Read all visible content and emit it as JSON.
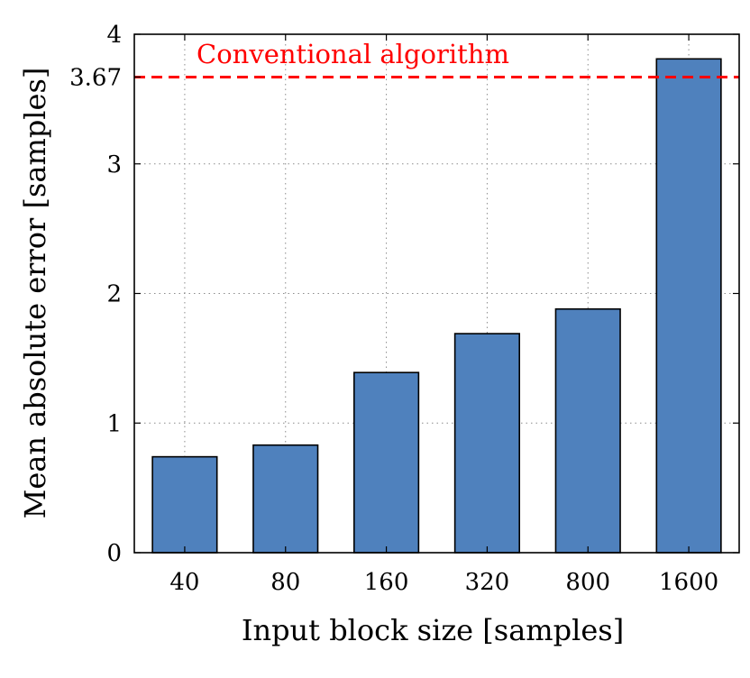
{
  "chart_data": {
    "type": "bar",
    "title": "",
    "xlabel": "Input block size [samples]",
    "ylabel": "Mean absolute error [samples]",
    "categories": [
      "40",
      "80",
      "160",
      "320",
      "800",
      "1600"
    ],
    "values": [
      0.74,
      0.83,
      1.39,
      1.69,
      1.88,
      3.81
    ],
    "ylim": [
      0,
      4
    ],
    "yticks": [
      "0",
      "1",
      "2",
      "3",
      "4"
    ],
    "grid": true,
    "bar_color": "#4f81bd",
    "reference_line": {
      "value": 3.67,
      "tick_label": "3.67",
      "label": "Conventional algorithm",
      "color": "#ff0000",
      "style": "dashed"
    }
  }
}
